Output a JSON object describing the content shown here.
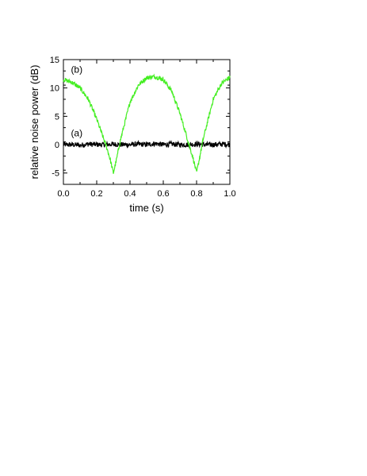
{
  "chart_data": {
    "type": "line",
    "title": "",
    "xlabel": "time (s)",
    "ylabel": "relative noise power (dB)",
    "xlim": [
      0.0,
      1.0
    ],
    "ylim": [
      -7,
      15
    ],
    "x_ticks": [
      0.0,
      0.2,
      0.4,
      0.6,
      0.8,
      1.0
    ],
    "x_tick_labels": [
      "0.0",
      "0.2",
      "0.4",
      "0.6",
      "0.8",
      "1.0"
    ],
    "y_ticks": [
      -5,
      0,
      5,
      10,
      15
    ],
    "y_tick_labels": [
      "-5",
      "0",
      "5",
      "10",
      "15"
    ],
    "grid": false,
    "legend": "none",
    "annotations": [
      {
        "text": "(a)",
        "x": 0.045,
        "y": 1.5
      },
      {
        "text": "(b)",
        "x": 0.045,
        "y": 12.7
      }
    ],
    "series": [
      {
        "id": "a",
        "color": "#000000",
        "x": [
          0.0,
          0.05,
          0.1,
          0.15,
          0.2,
          0.25,
          0.3,
          0.35,
          0.4,
          0.45,
          0.5,
          0.55,
          0.6,
          0.65,
          0.7,
          0.75,
          0.8,
          0.85,
          0.9,
          0.95,
          1.0
        ],
        "y": [
          0.0,
          0.0,
          -0.1,
          0.1,
          0.0,
          0.0,
          0.1,
          0.0,
          0.0,
          0.1,
          0.0,
          0.2,
          0.0,
          0.1,
          0.0,
          0.0,
          0.1,
          0.0,
          0.0,
          0.1,
          0.0
        ]
      },
      {
        "id": "b",
        "color": "#44ee22",
        "x": [
          0.0,
          0.05,
          0.1,
          0.15,
          0.2,
          0.23,
          0.26,
          0.28,
          0.3,
          0.32,
          0.34,
          0.37,
          0.4,
          0.45,
          0.5,
          0.55,
          0.6,
          0.65,
          0.7,
          0.73,
          0.76,
          0.78,
          0.8,
          0.82,
          0.84,
          0.87,
          0.9,
          0.95,
          1.0
        ],
        "y": [
          11.5,
          11.0,
          10.0,
          8.0,
          4.5,
          2.0,
          -0.5,
          -2.5,
          -5.0,
          -2.5,
          0.5,
          4.0,
          7.5,
          10.5,
          11.8,
          12.0,
          11.5,
          9.5,
          5.5,
          2.5,
          -0.5,
          -2.5,
          -5.0,
          -2.0,
          1.0,
          4.5,
          8.0,
          10.8,
          11.9
        ]
      }
    ]
  }
}
